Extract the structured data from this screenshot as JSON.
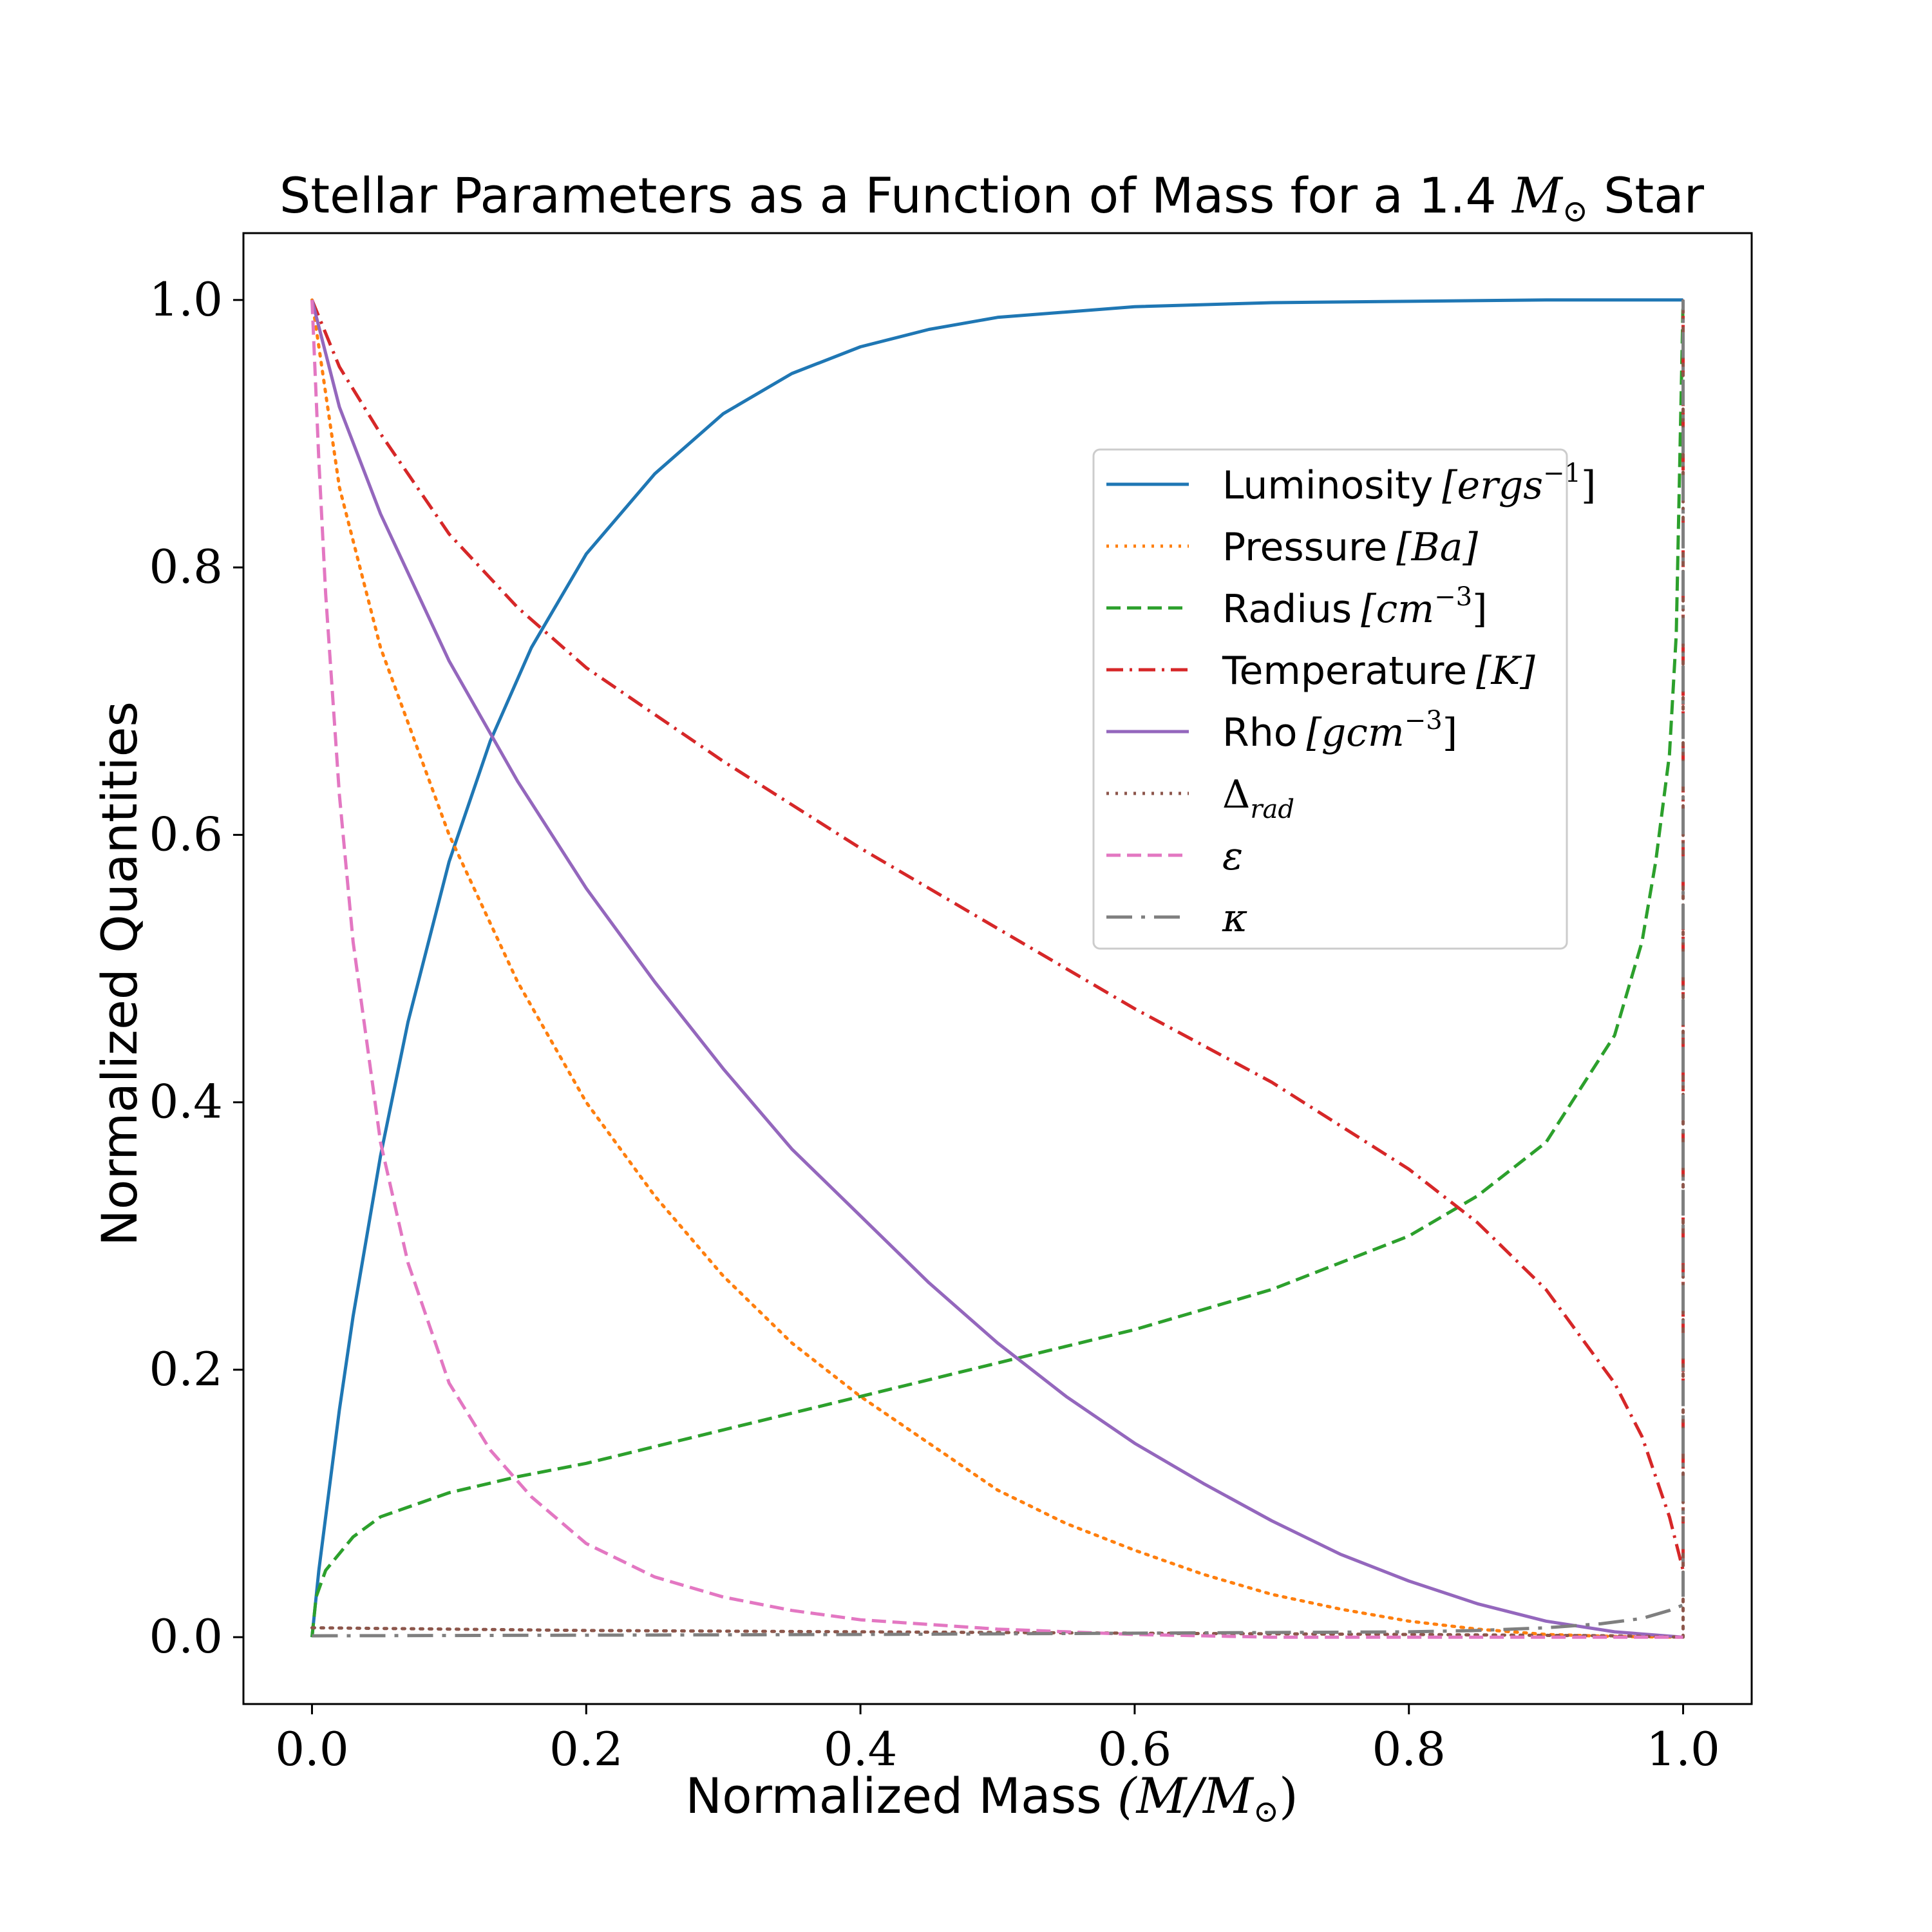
{
  "chart_data": {
    "type": "line",
    "title": {
      "prefix": "Stellar Parameters as a Function of Mass for a 1.4 ",
      "symbol": "M",
      "subscript": "⊙",
      "suffix": " Star"
    },
    "xlabel": {
      "prefix": "Normalized Mass ",
      "math": "(M/M",
      "subscript": "⊙",
      "close": ")"
    },
    "ylabel": "Normalized Quantities",
    "xlim": [
      -0.05,
      1.05
    ],
    "ylim": [
      -0.05,
      1.05
    ],
    "xticks": [
      0.0,
      0.2,
      0.4,
      0.6,
      0.8,
      1.0
    ],
    "yticks": [
      0.0,
      0.2,
      0.4,
      0.6,
      0.8,
      1.0
    ],
    "xtick_labels": [
      "0.0",
      "0.2",
      "0.4",
      "0.6",
      "0.8",
      "1.0"
    ],
    "ytick_labels": [
      "0.0",
      "0.2",
      "0.4",
      "0.6",
      "0.8",
      "1.0"
    ],
    "grid": false,
    "legend_position": "upper-right",
    "series": [
      {
        "key": "luminosity",
        "name": "Luminosity",
        "unit": "[ergs",
        "unit_sup": "−1",
        "unit_close": "]",
        "color": "#1f77b4",
        "style": "solid",
        "x": [
          0,
          0.005,
          0.01,
          0.02,
          0.03,
          0.05,
          0.07,
          0.1,
          0.13,
          0.16,
          0.2,
          0.25,
          0.3,
          0.35,
          0.4,
          0.45,
          0.5,
          0.6,
          0.7,
          0.8,
          0.9,
          1.0,
          1.0
        ],
        "y": [
          0,
          0.05,
          0.09,
          0.17,
          0.24,
          0.36,
          0.46,
          0.58,
          0.67,
          0.74,
          0.81,
          0.87,
          0.915,
          0.945,
          0.965,
          0.978,
          0.987,
          0.995,
          0.998,
          0.999,
          1.0,
          1.0,
          1.0
        ]
      },
      {
        "key": "pressure",
        "name": "Pressure",
        "unit": "[Ba]",
        "color": "#ff7f0e",
        "style": "dotted",
        "x": [
          0,
          0.02,
          0.05,
          0.1,
          0.15,
          0.2,
          0.25,
          0.3,
          0.35,
          0.4,
          0.45,
          0.5,
          0.55,
          0.6,
          0.65,
          0.7,
          0.75,
          0.8,
          0.85,
          0.9,
          0.95,
          1.0
        ],
        "y": [
          1.0,
          0.86,
          0.74,
          0.6,
          0.49,
          0.4,
          0.33,
          0.27,
          0.22,
          0.18,
          0.145,
          0.11,
          0.085,
          0.065,
          0.047,
          0.032,
          0.021,
          0.012,
          0.006,
          0.002,
          0.0005,
          0.0
        ]
      },
      {
        "key": "radius",
        "name": "Radius",
        "unit": "[cm",
        "unit_sup": "−3",
        "unit_close": "]",
        "color": "#2ca02c",
        "style": "dashed",
        "x": [
          0,
          0.003,
          0.01,
          0.03,
          0.05,
          0.1,
          0.15,
          0.2,
          0.3,
          0.4,
          0.5,
          0.6,
          0.7,
          0.8,
          0.85,
          0.9,
          0.95,
          0.97,
          0.98,
          0.99,
          0.995,
          1.0
        ],
        "y": [
          0,
          0.03,
          0.05,
          0.075,
          0.09,
          0.108,
          0.12,
          0.13,
          0.155,
          0.18,
          0.205,
          0.23,
          0.26,
          0.3,
          0.33,
          0.37,
          0.45,
          0.52,
          0.58,
          0.66,
          0.75,
          1.0
        ]
      },
      {
        "key": "temperature",
        "name": "Temperature",
        "unit": "[K]",
        "color": "#d62728",
        "style": "dashdot",
        "x": [
          0,
          0.02,
          0.05,
          0.1,
          0.15,
          0.2,
          0.3,
          0.4,
          0.5,
          0.6,
          0.7,
          0.8,
          0.85,
          0.9,
          0.95,
          0.97,
          0.98,
          0.99,
          0.995,
          1.0,
          1.0
        ],
        "y": [
          1.0,
          0.95,
          0.9,
          0.825,
          0.77,
          0.725,
          0.655,
          0.59,
          0.53,
          0.47,
          0.415,
          0.35,
          0.31,
          0.26,
          0.19,
          0.15,
          0.12,
          0.09,
          0.07,
          0.05,
          1.0
        ]
      },
      {
        "key": "rho",
        "name": "Rho",
        "unit": "[gcm",
        "unit_sup": "−3",
        "unit_close": "]",
        "color": "#9467bd",
        "style": "solid",
        "x": [
          0,
          0.02,
          0.05,
          0.1,
          0.15,
          0.2,
          0.25,
          0.3,
          0.35,
          0.4,
          0.45,
          0.5,
          0.55,
          0.6,
          0.65,
          0.7,
          0.75,
          0.8,
          0.85,
          0.9,
          0.95,
          1.0
        ],
        "y": [
          1.0,
          0.92,
          0.84,
          0.73,
          0.64,
          0.56,
          0.49,
          0.425,
          0.365,
          0.315,
          0.265,
          0.22,
          0.18,
          0.145,
          0.115,
          0.087,
          0.062,
          0.042,
          0.025,
          0.012,
          0.004,
          0.0
        ]
      },
      {
        "key": "delta_rad",
        "name": "Δ",
        "subscript": "rad",
        "color": "#8c564b",
        "style": "dotted",
        "x": [
          0,
          0.2,
          0.4,
          0.6,
          0.8,
          0.95,
          1.0,
          1.0
        ],
        "y": [
          0.007,
          0.005,
          0.004,
          0.003,
          0.002,
          0.001,
          0.0,
          1.0
        ]
      },
      {
        "key": "epsilon",
        "name": "ε",
        "color": "#e377c2",
        "style": "dashed",
        "x": [
          0,
          0.005,
          0.01,
          0.02,
          0.03,
          0.05,
          0.07,
          0.1,
          0.13,
          0.16,
          0.2,
          0.25,
          0.3,
          0.35,
          0.4,
          0.5,
          0.6,
          0.7,
          1.0
        ],
        "y": [
          1.0,
          0.88,
          0.78,
          0.63,
          0.52,
          0.37,
          0.28,
          0.19,
          0.14,
          0.105,
          0.07,
          0.045,
          0.03,
          0.02,
          0.013,
          0.006,
          0.002,
          0.0,
          0.0
        ]
      },
      {
        "key": "kappa",
        "name": "κ",
        "color": "#7f7f7f",
        "style": "longdashdot",
        "x": [
          0,
          0.2,
          0.4,
          0.6,
          0.8,
          0.85,
          0.9,
          0.94,
          0.97,
          0.99,
          1.0,
          1.0
        ],
        "y": [
          0.001,
          0.0015,
          0.002,
          0.003,
          0.004,
          0.005,
          0.007,
          0.01,
          0.014,
          0.02,
          0.024,
          1.0
        ]
      }
    ]
  }
}
